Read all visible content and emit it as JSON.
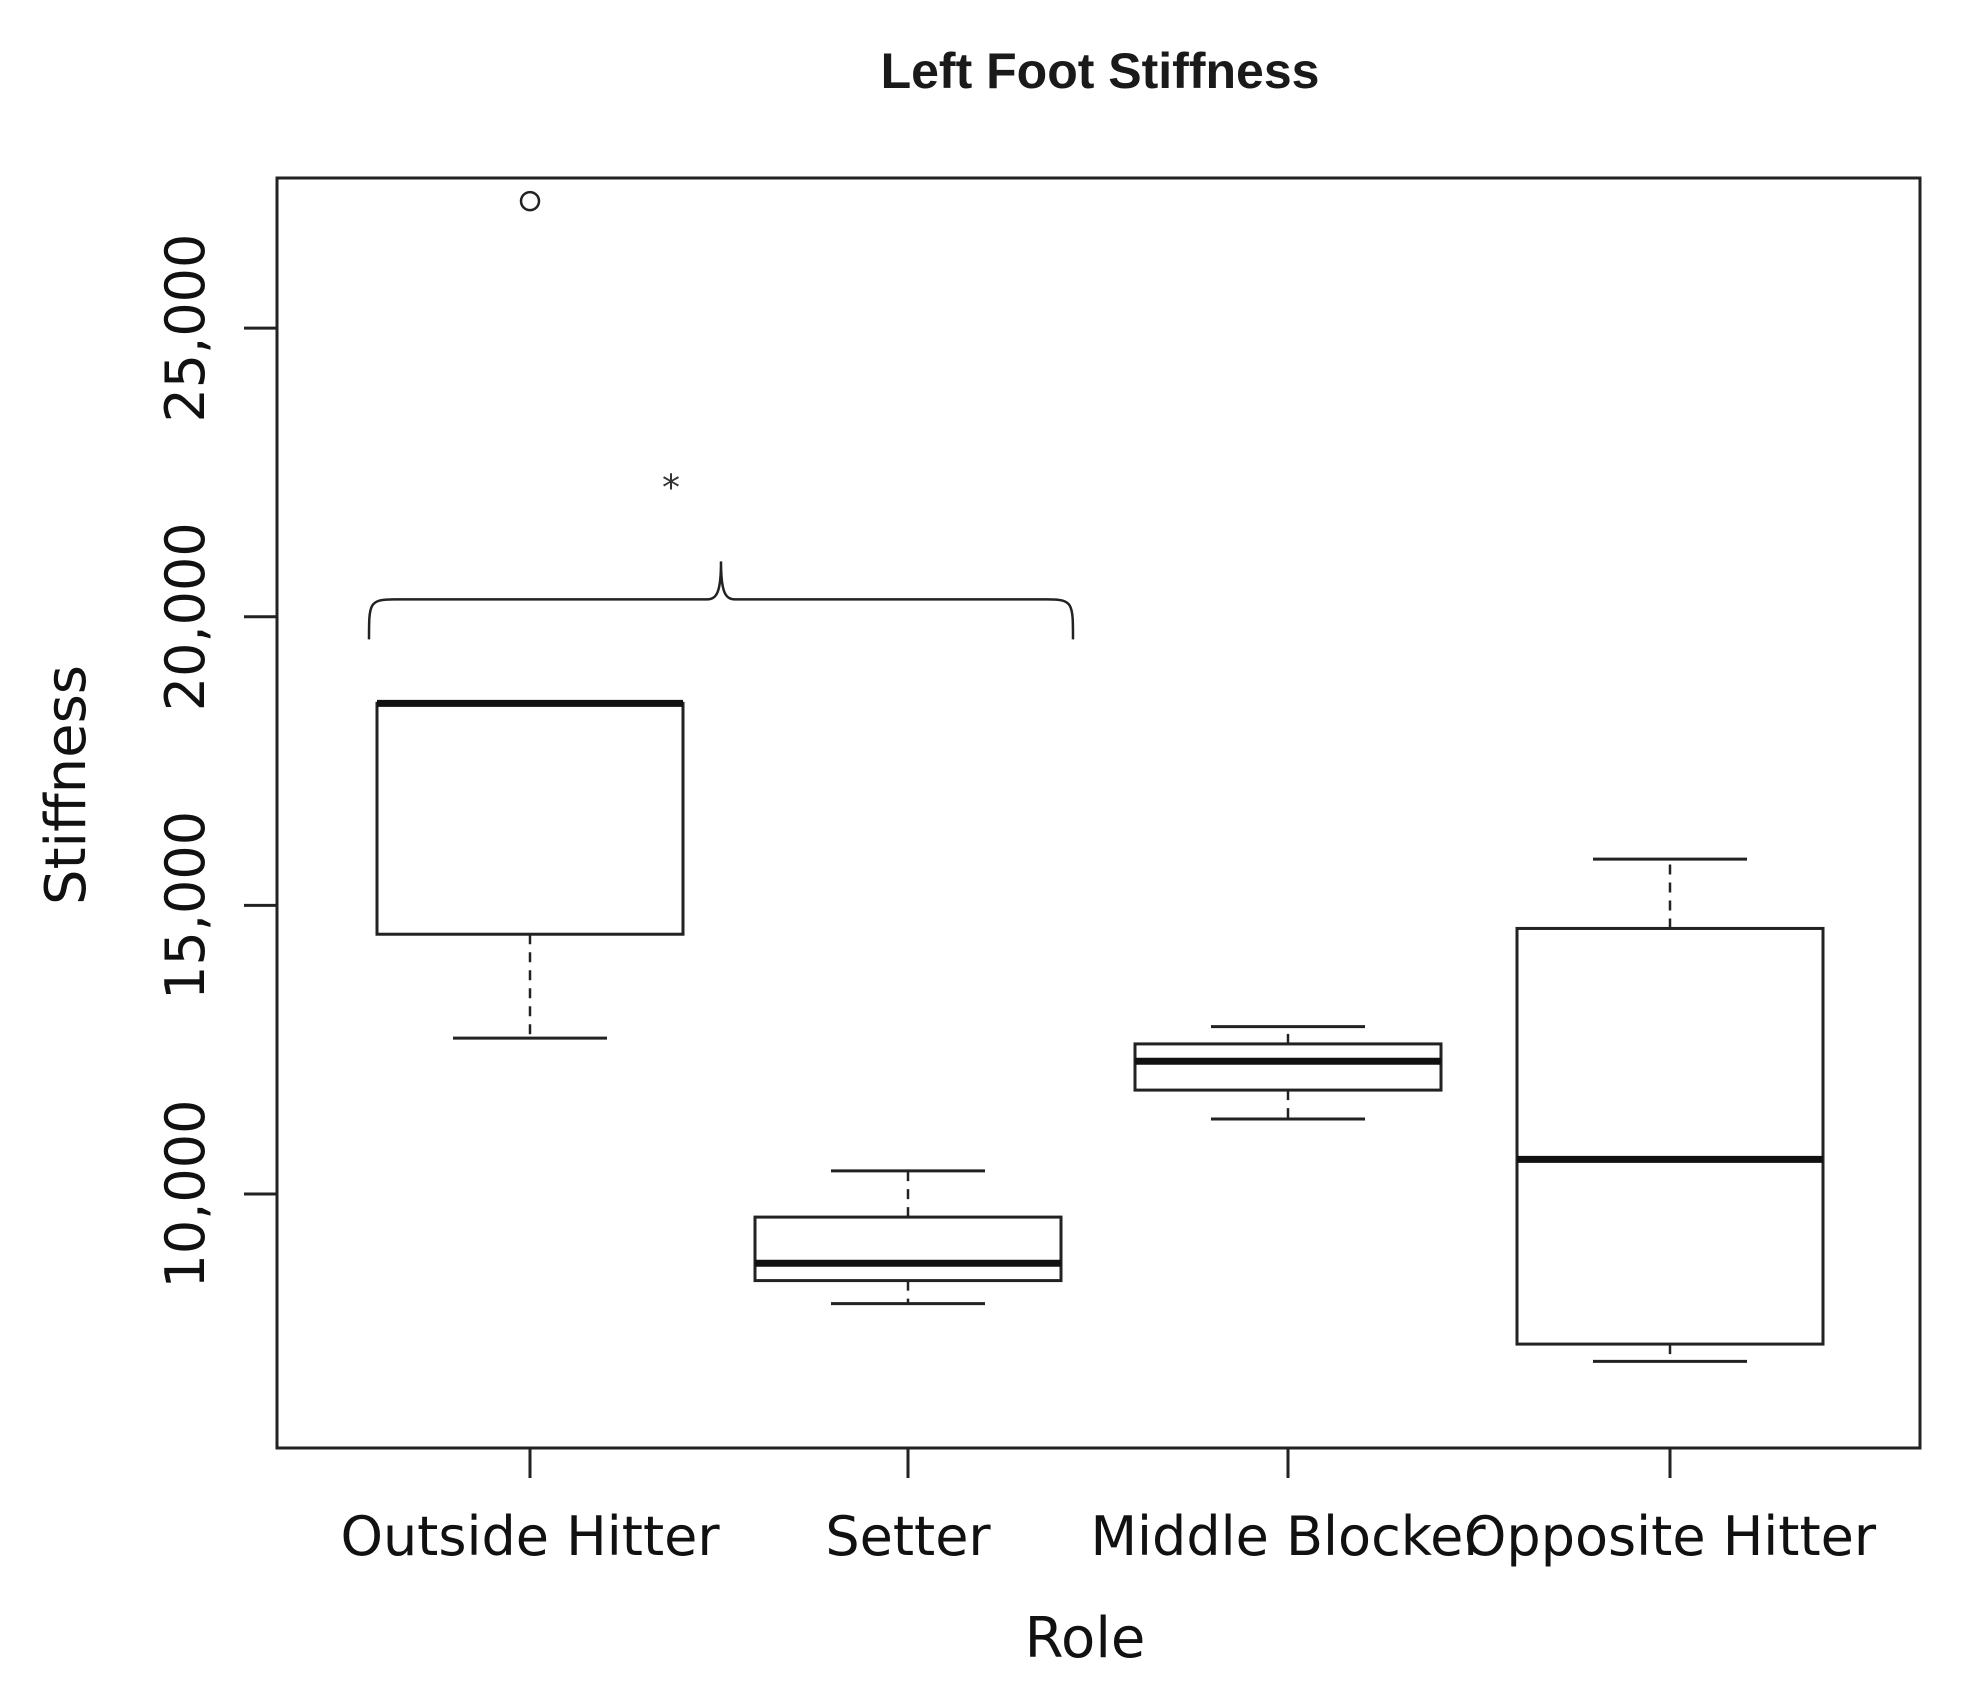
{
  "chart_data": {
    "type": "box",
    "title": "Left Foot Stiffness",
    "xlabel": "Role",
    "ylabel": "Stiffness",
    "ylim": [
      5600,
      27600
    ],
    "yticks": [
      10000,
      15000,
      20000,
      25000
    ],
    "ytick_labels": [
      "10,000",
      "15,000",
      "20,000",
      "25,000"
    ],
    "categories": [
      "Outside Hitter",
      "Setter",
      "Middle Blocker",
      "Opposite Hitter"
    ],
    "boxes": [
      {
        "category": "Outside Hitter",
        "whisker_low": 12700,
        "q1": 14500,
        "median": 18500,
        "q3": 18500,
        "whisker_high": 18500,
        "outliers": [
          27200
        ]
      },
      {
        "category": "Setter",
        "whisker_low": 8100,
        "q1": 8500,
        "median": 8800,
        "q3": 9600,
        "whisker_high": 10400,
        "outliers": []
      },
      {
        "category": "Middle Blocker",
        "whisker_low": 11300,
        "q1": 11800,
        "median": 12300,
        "q3": 12600,
        "whisker_high": 12900,
        "outliers": []
      },
      {
        "category": "Opposite Hitter",
        "whisker_low": 7100,
        "q1": 7400,
        "median": 10600,
        "q3": 14600,
        "whisker_high": 15800,
        "outliers": []
      }
    ],
    "annotations": [
      {
        "text": "*",
        "type": "significance",
        "between": [
          "Outside Hitter",
          "Setter"
        ],
        "y": 20300
      }
    ],
    "grid": false,
    "legend": "none"
  },
  "colors": {
    "stroke": "#222222",
    "background": "#ffffff"
  }
}
